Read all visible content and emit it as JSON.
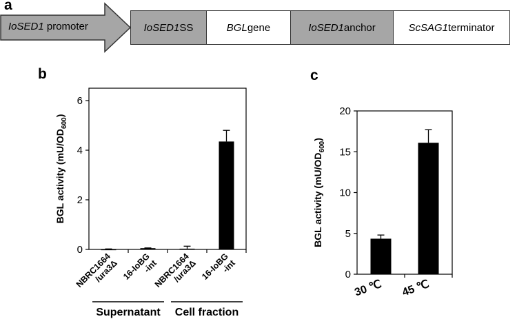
{
  "panels": {
    "a": "a",
    "b": "b",
    "c": "c"
  },
  "construct": {
    "segments": [
      {
        "italic": "IoSED1",
        "text": " promoter",
        "fill": "#a6a6a6",
        "shape": "arrow"
      },
      {
        "italic": "IoSED1",
        "text": " SS",
        "fill": "#a6a6a6",
        "shape": "box"
      },
      {
        "italic": "BGL",
        "text": " gene",
        "fill": "#ffffff",
        "shape": "box"
      },
      {
        "italic": "IoSED1",
        "text": " anchor",
        "fill": "#a6a6a6",
        "shape": "box"
      },
      {
        "italic": "ScSAG1",
        "text": " terminator",
        "fill": "#ffffff",
        "shape": "box"
      }
    ]
  },
  "chart_data": [
    {
      "type": "bar",
      "panel": "b",
      "ylabel_main": "BGL activity (mU/OD",
      "ylabel_sub": "600",
      "ylabel_close": ")",
      "ylim": [
        0,
        6.5
      ],
      "yticks": [
        "0",
        "2",
        "4",
        "6"
      ],
      "categories": [
        "NBRC1664/ura3Δ",
        "16-IoBG-int",
        "NBRC1664/ura3Δ",
        "16-IoBG-int"
      ],
      "category_lines": [
        [
          "NBRC1664",
          "/ura3Δ"
        ],
        [
          "16-IoBG",
          "-int"
        ],
        [
          "NBRC1664",
          "/ura3Δ"
        ],
        [
          "16-IoBG",
          "-int"
        ]
      ],
      "values": [
        0.01,
        0.05,
        0.03,
        4.35
      ],
      "errors": [
        0.01,
        0.01,
        0.1,
        0.45
      ],
      "groups": [
        {
          "label": "Supernatant",
          "categories": [
            0,
            1
          ]
        },
        {
          "label": "Cell fraction",
          "categories": [
            2,
            3
          ]
        }
      ],
      "bar_color": "#000000"
    },
    {
      "type": "bar",
      "panel": "c",
      "ylabel_main": "BGL activity (mU/OD",
      "ylabel_sub": "600",
      "ylabel_close": ")",
      "ylim": [
        0,
        20
      ],
      "yticks": [
        "0",
        "5",
        "10",
        "15",
        "20"
      ],
      "categories": [
        "30 ℃",
        "45 ℃"
      ],
      "values": [
        4.35,
        16.1
      ],
      "errors": [
        0.45,
        1.6
      ],
      "bar_color": "#000000"
    }
  ]
}
